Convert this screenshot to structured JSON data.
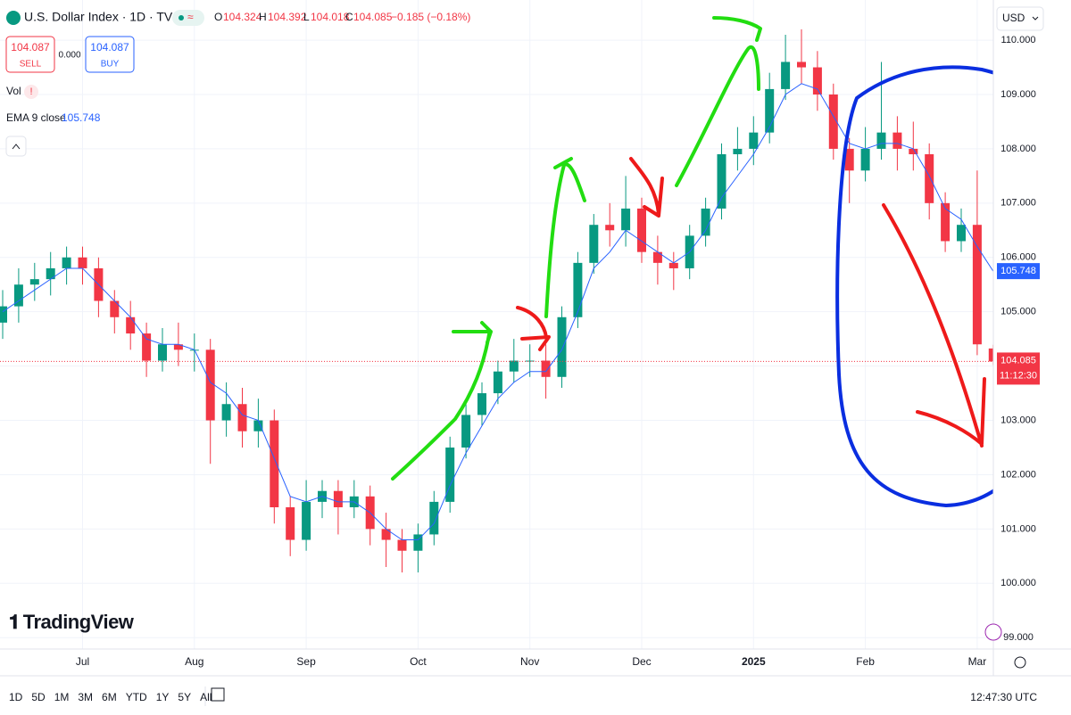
{
  "header": {
    "symbol": "U.S. Dollar Index · 1D · TVC",
    "o_label": "O",
    "o": "104.324",
    "h_label": "H",
    "h": "104.392",
    "l_label": "L",
    "l": "104.018",
    "c_label": "C",
    "c": "104.085",
    "change": "−0.185 (−0.18%)",
    "sell_price": "104.087",
    "sell": "SELL",
    "spread": "0.000",
    "buy_price": "104.087",
    "buy": "BUY",
    "vol": "Vol",
    "currency": "USD",
    "countdown": "11:12:30",
    "logo": "TradingView"
  },
  "toolbar": {
    "ranges": [
      "1D",
      "5D",
      "1M",
      "3M",
      "6M",
      "YTD",
      "1Y",
      "5Y",
      "All"
    ],
    "clock": "12:47:30 UTC"
  },
  "chart_data": {
    "type": "candlestick",
    "categories": [
      null,
      null,
      null,
      null,
      null,
      "Jul",
      null,
      null,
      null,
      null,
      null,
      null,
      "Aug",
      null,
      null,
      null,
      null,
      null,
      null,
      "Sep",
      null,
      null,
      null,
      null,
      null,
      null,
      "Oct",
      null,
      null,
      null,
      null,
      null,
      null,
      "Nov",
      null,
      null,
      null,
      null,
      null,
      null,
      "Dec",
      null,
      null,
      null,
      null,
      null,
      null,
      "2025",
      null,
      null,
      null,
      null,
      null,
      null,
      "Feb",
      null,
      null,
      null,
      null,
      null,
      null,
      "Mar",
      null
    ],
    "open": [
      104.8,
      105.1,
      105.5,
      105.6,
      105.8,
      106.0,
      105.8,
      105.2,
      104.9,
      104.6,
      104.1,
      104.4,
      104.3,
      104.3,
      103.0,
      103.3,
      102.8,
      103.0,
      101.4,
      100.8,
      101.5,
      101.7,
      101.4,
      101.6,
      101.0,
      100.8,
      100.6,
      100.9,
      101.5,
      102.5,
      103.1,
      103.5,
      103.9,
      104.1,
      104.1,
      103.8,
      104.9,
      105.9,
      106.6,
      106.5,
      106.9,
      106.1,
      105.9,
      105.8,
      106.4,
      106.9,
      107.9,
      108.0,
      108.3,
      109.1,
      109.6,
      109.5,
      109.0,
      108.0,
      107.6,
      108.0,
      108.3,
      108.0,
      107.9,
      107.0,
      106.3,
      106.6,
      104.324
    ],
    "high": [
      105.4,
      105.8,
      105.9,
      106.1,
      106.2,
      106.2,
      106.0,
      105.4,
      105.2,
      104.8,
      104.7,
      104.8,
      104.6,
      104.5,
      103.7,
      103.6,
      103.4,
      103.2,
      101.6,
      101.9,
      101.9,
      101.9,
      101.9,
      101.8,
      101.3,
      101.0,
      101.1,
      101.7,
      102.7,
      103.3,
      103.7,
      104.1,
      104.5,
      104.4,
      104.4,
      105.1,
      106.1,
      106.8,
      107.0,
      107.5,
      107.1,
      106.4,
      106.1,
      106.6,
      107.1,
      108.1,
      108.4,
      108.6,
      109.4,
      110.1,
      110.2,
      109.8,
      109.2,
      108.2,
      108.4,
      109.6,
      108.6,
      108.5,
      108.1,
      107.2,
      106.9,
      107.6,
      104.392
    ],
    "low": [
      104.5,
      104.8,
      105.2,
      105.3,
      105.5,
      105.5,
      104.9,
      104.6,
      104.3,
      103.8,
      103.9,
      104.0,
      103.9,
      102.2,
      102.7,
      102.5,
      102.5,
      101.1,
      100.5,
      100.6,
      101.2,
      100.9,
      101.2,
      100.7,
      100.3,
      100.2,
      100.2,
      100.7,
      101.3,
      102.3,
      102.9,
      103.3,
      103.7,
      103.8,
      103.4,
      103.6,
      104.7,
      105.7,
      106.2,
      106.2,
      105.9,
      105.5,
      105.4,
      105.6,
      106.2,
      106.7,
      107.6,
      107.7,
      108.1,
      108.9,
      109.2,
      108.7,
      107.8,
      107.0,
      107.4,
      107.8,
      107.6,
      107.6,
      106.7,
      106.1,
      106.1,
      104.2,
      104.018
    ],
    "close": [
      105.1,
      105.5,
      105.6,
      105.8,
      106.0,
      105.8,
      105.2,
      104.9,
      104.6,
      104.1,
      104.4,
      104.3,
      104.3,
      103.0,
      103.3,
      102.8,
      103.0,
      101.4,
      100.8,
      101.5,
      101.7,
      101.4,
      101.6,
      101.0,
      100.8,
      100.6,
      100.9,
      101.5,
      102.5,
      103.1,
      103.5,
      103.9,
      104.1,
      104.1,
      103.8,
      104.9,
      105.9,
      106.6,
      106.5,
      106.9,
      106.1,
      105.9,
      105.8,
      106.4,
      106.9,
      107.9,
      108.0,
      108.3,
      109.1,
      109.6,
      109.5,
      109.0,
      108.0,
      107.6,
      108.0,
      108.3,
      108.0,
      107.9,
      107.0,
      106.3,
      106.6,
      104.4,
      104.085
    ],
    "ema": {
      "name": "EMA 9 close",
      "color": "#2962ff",
      "values": [
        105.0,
        105.2,
        105.4,
        105.6,
        105.8,
        105.8,
        105.5,
        105.2,
        104.9,
        104.5,
        104.4,
        104.4,
        104.3,
        103.7,
        103.5,
        103.1,
        103.0,
        102.3,
        101.6,
        101.5,
        101.6,
        101.5,
        101.5,
        101.3,
        101.0,
        100.8,
        100.8,
        101.1,
        101.8,
        102.4,
        102.9,
        103.4,
        103.7,
        103.9,
        103.9,
        104.3,
        105.0,
        105.8,
        106.1,
        106.5,
        106.3,
        106.1,
        105.9,
        106.1,
        106.5,
        107.1,
        107.5,
        107.9,
        108.4,
        109.0,
        109.2,
        109.1,
        108.6,
        108.1,
        108.0,
        108.1,
        108.1,
        108.0,
        107.5,
        106.9,
        106.7,
        106.2,
        105.748
      ]
    },
    "up_color": "#089981",
    "down_color": "#f23645",
    "ylim": [
      98.79,
      110.74
    ],
    "yticks": [
      {
        "value": 99,
        "label": "99.000"
      },
      {
        "value": 100,
        "label": "100.000"
      },
      {
        "value": 101,
        "label": "101.000"
      },
      {
        "value": 102,
        "label": "102.000"
      },
      {
        "value": 103,
        "label": "103.000"
      },
      {
        "value": 104,
        "label": "104.000"
      },
      {
        "value": 105,
        "label": "105.000"
      },
      {
        "value": 106,
        "label": "106.000"
      },
      {
        "value": 107,
        "label": "107.000"
      },
      {
        "value": 108,
        "label": "108.000"
      },
      {
        "value": 109,
        "label": "109.000"
      },
      {
        "value": 110,
        "label": "110.000"
      }
    ],
    "grid": true
  }
}
